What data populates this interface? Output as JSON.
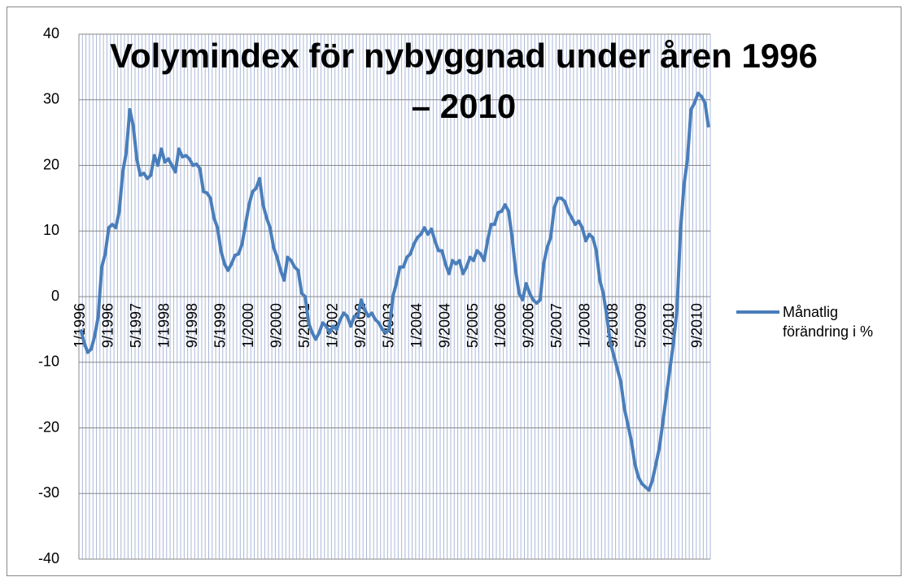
{
  "chart_data": {
    "type": "line",
    "title": "Volymindex för nybyggnad under åren 1996 – 2010",
    "categories": [
      "1/1996",
      null,
      null,
      null,
      null,
      null,
      null,
      null,
      "9/1996",
      null,
      null,
      null,
      null,
      null,
      null,
      null,
      "5/1997",
      null,
      null,
      null,
      null,
      null,
      null,
      null,
      "1/1998",
      null,
      null,
      null,
      null,
      null,
      null,
      null,
      "9/1998",
      null,
      null,
      null,
      null,
      null,
      null,
      null,
      "5/1999",
      null,
      null,
      null,
      null,
      null,
      null,
      null,
      "1/2000",
      null,
      null,
      null,
      null,
      null,
      null,
      null,
      "9/2000",
      null,
      null,
      null,
      null,
      null,
      null,
      null,
      "5/2001",
      null,
      null,
      null,
      null,
      null,
      null,
      null,
      "1/2002",
      null,
      null,
      null,
      null,
      null,
      null,
      null,
      "9/2002",
      null,
      null,
      null,
      null,
      null,
      null,
      null,
      "5/2003",
      null,
      null,
      null,
      null,
      null,
      null,
      null,
      "1/2004",
      null,
      null,
      null,
      null,
      null,
      null,
      null,
      "9/2004",
      null,
      null,
      null,
      null,
      null,
      null,
      null,
      "5/2005",
      null,
      null,
      null,
      null,
      null,
      null,
      null,
      "1/2006",
      null,
      null,
      null,
      null,
      null,
      null,
      null,
      "9/2006",
      null,
      null,
      null,
      null,
      null,
      null,
      null,
      "5/2007",
      null,
      null,
      null,
      null,
      null,
      null,
      null,
      "1/2008",
      null,
      null,
      null,
      null,
      null,
      null,
      null,
      "9/2008",
      null,
      null,
      null,
      null,
      null,
      null,
      null,
      "5/2009",
      null,
      null,
      null,
      null,
      null,
      null,
      null,
      "1/2010",
      null,
      null,
      null,
      null,
      null,
      null,
      null,
      "9/2010",
      null,
      null,
      null
    ],
    "series": [
      {
        "name": "Månatlig förändring i %",
        "color": "#4a7ebb",
        "values": [
          -5,
          -7,
          -8.5,
          -8,
          -6,
          -3,
          4.5,
          6.5,
          10.5,
          11,
          10.5,
          13,
          19,
          22,
          28.5,
          26,
          21,
          18.5,
          18.8,
          18,
          18.5,
          21.5,
          20,
          22.5,
          20.5,
          21,
          20,
          19,
          22.5,
          21.3,
          21.5,
          21,
          20,
          20.2,
          19.5,
          16,
          15.8,
          15,
          12,
          10.5,
          7,
          5,
          4,
          5,
          6.3,
          6.5,
          8,
          11,
          14,
          16,
          16.5,
          18,
          14,
          12,
          10.5,
          7.5,
          6,
          4,
          2.5,
          6,
          5.5,
          4.5,
          4,
          0.5,
          0,
          -4,
          -5.5,
          -6.5,
          -5.5,
          -4,
          -4.5,
          -5.5,
          -4.5,
          -5,
          -3.5,
          -2.5,
          -3,
          -4.5,
          -3,
          -3,
          -0.5,
          -2,
          -3,
          -2.5,
          -3.5,
          -4,
          -5,
          -5.5,
          -5,
          0,
          2,
          4.5,
          4.5,
          6,
          6.5,
          8,
          9,
          9.5,
          10.5,
          9.5,
          10.3,
          8.5,
          7,
          7,
          5,
          3.5,
          5.5,
          5,
          5.5,
          3.5,
          4.5,
          6,
          5.5,
          7,
          6.5,
          5.5,
          8.5,
          11,
          11,
          12.8,
          13,
          14,
          13,
          9,
          4,
          0.5,
          -0.5,
          2,
          0.5,
          -0.5,
          -1,
          -0.5,
          5,
          7.5,
          9,
          13.5,
          15,
          15,
          14.5,
          13,
          12,
          11,
          11.5,
          10.5,
          8.5,
          9.5,
          9,
          7,
          2.5,
          0.5,
          -3,
          -7,
          -9,
          -11,
          -13,
          -17,
          -19.5,
          -22,
          -25.5,
          -27.5,
          -28.5,
          -29,
          -29.5,
          -28,
          -25.5,
          -23,
          -19,
          -15,
          -11,
          -7,
          -2,
          10,
          17,
          21,
          28.5,
          29.5,
          31,
          30.5,
          29.5,
          25.8
        ]
      }
    ],
    "ylim": [
      -40,
      40
    ],
    "yticks": [
      -40,
      -30,
      -20,
      -10,
      0,
      10,
      20,
      30,
      40
    ],
    "grid": true,
    "legend": "right"
  }
}
